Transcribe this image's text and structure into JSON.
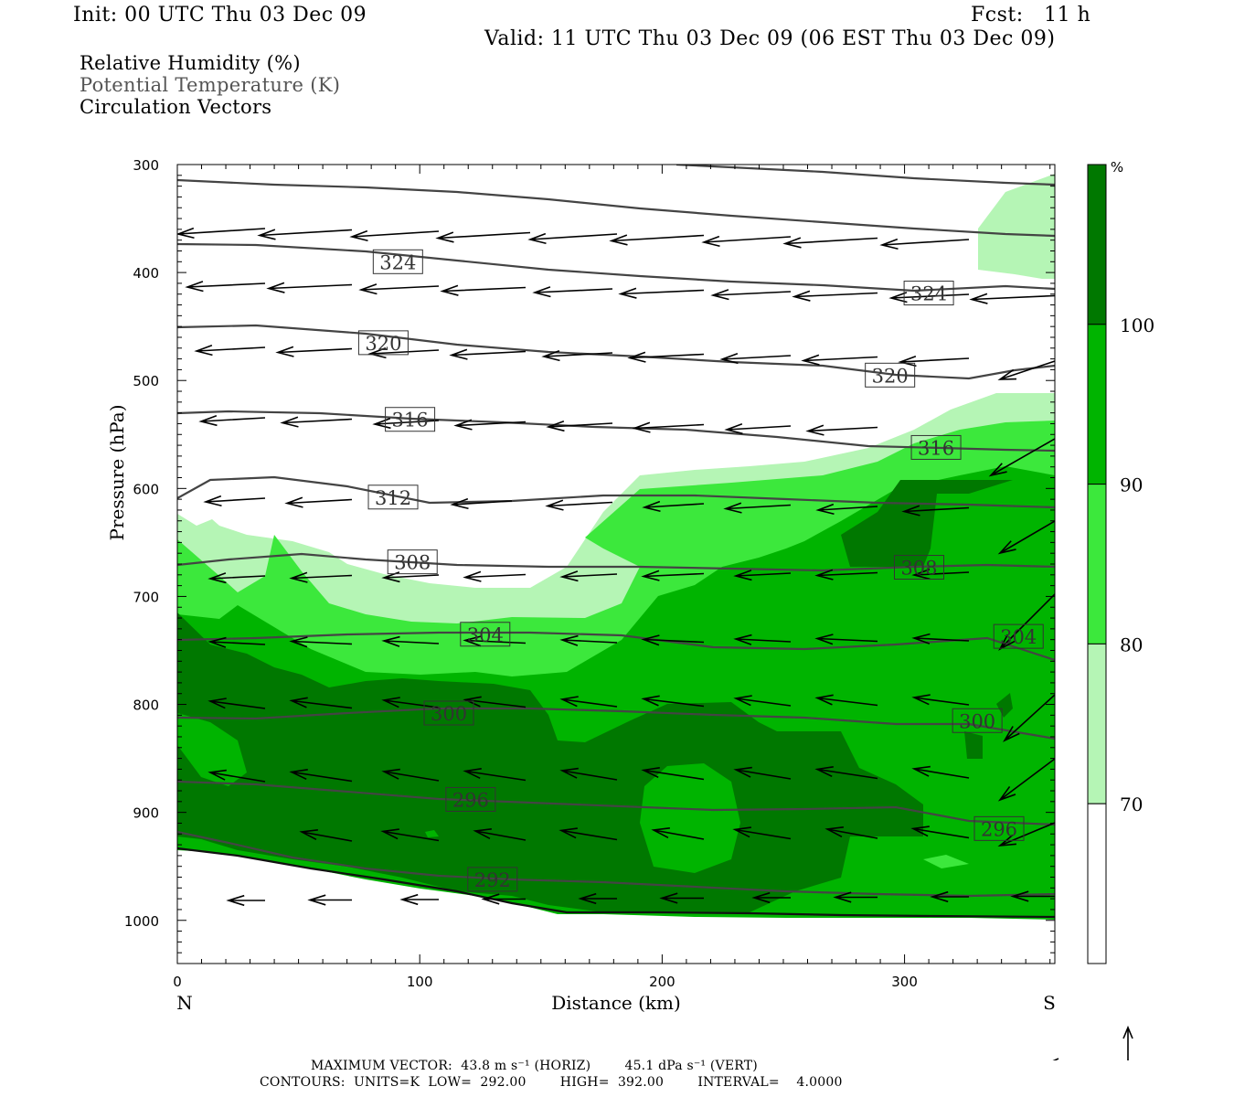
{
  "header": {
    "init": "Init: 00 UTC Thu 03 Dec 09",
    "fcst": "Fcst:   11 h",
    "valid": "Valid: 11 UTC Thu 03 Dec 09 (06 EST Thu 03 Dec 09)"
  },
  "titles": {
    "rh": "Relative Humidity (%)",
    "theta": "Potential Temperature (K)",
    "vectors": "Circulation Vectors"
  },
  "footer": {
    "max_vector": "MAXIMUM VECTOR:  43.8 m s⁻¹ (HORIZ)        45.1 dPa s⁻¹ (VERT)",
    "contours": "CONTOURS:  UNITS=K  LOW=  292.00        HIGH=  392.00        INTERVAL=    4.0000"
  },
  "colors": {
    "rh_70_80": "#b5f5b5",
    "rh_80_90": "#3ce83c",
    "rh_90_100": "#00b400",
    "rh_100": "#007800",
    "contour": "#444444",
    "vector": "#000000"
  },
  "chart_data": {
    "type": "cross-section",
    "xlabel": "Distance (km)",
    "ylabel": "Pressure (hPa)",
    "xlim": [
      0,
      362
    ],
    "ylim": [
      1040,
      300
    ],
    "x_ticks": [
      "0",
      "100",
      "200",
      "300"
    ],
    "y_ticks": [
      "300",
      "400",
      "500",
      "600",
      "700",
      "800",
      "900",
      "1000"
    ],
    "x_end_labels": {
      "left": "N",
      "right": "S"
    },
    "colorbar": {
      "unit": "%",
      "labels": [
        "70",
        "80",
        "90",
        "100"
      ],
      "colors": [
        "#ffffff",
        "#b5f5b5",
        "#3ce83c",
        "#00b400",
        "#007800"
      ]
    },
    "theta_contours": [
      {
        "value": 292,
        "label": "292",
        "label_at": [
          130,
          962
        ]
      },
      {
        "value": 296,
        "label": "296",
        "label_at": [
          121,
          888
        ],
        "label2_at": [
          339,
          915
        ]
      },
      {
        "value": 300,
        "label": "300",
        "label_at": [
          112,
          808
        ],
        "label2_at": [
          330,
          815
        ]
      },
      {
        "value": 304,
        "label": "304",
        "label_at": [
          127,
          735
        ],
        "label2_at": [
          347,
          737
        ]
      },
      {
        "value": 308,
        "label": "308",
        "label_at": [
          97,
          668
        ],
        "label2_at": [
          306,
          673
        ]
      },
      {
        "value": 312,
        "label": "312",
        "label_at": [
          89,
          608
        ]
      },
      {
        "value": 316,
        "label": "316",
        "label_at": [
          96,
          536
        ],
        "label2_at": [
          313,
          562
        ]
      },
      {
        "value": 320,
        "label": "320",
        "label_at": [
          85,
          465
        ],
        "label2_at": [
          294,
          495
        ]
      },
      {
        "value": 324,
        "label": "324",
        "label_at": [
          91,
          390
        ],
        "label2_at": [
          310,
          419
        ]
      }
    ]
  }
}
